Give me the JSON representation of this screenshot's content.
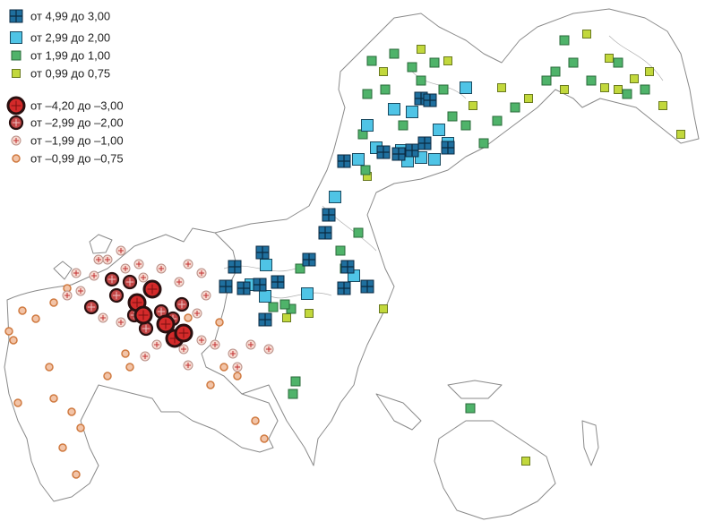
{
  "legend": {
    "items": [
      {
        "label": "от 4,99 до 3,00"
      },
      {
        "label": "от 2,99 до 2,00"
      },
      {
        "label": "от 1,99 до 1,00"
      },
      {
        "label": "от 0,99 до 0,75"
      },
      {
        "label": "от –4,20 до –3,00"
      },
      {
        "label": "от –2,99 до –2,00"
      },
      {
        "label": "от –1,99 до –1,00"
      },
      {
        "label": "от –0,99 до –0,75"
      }
    ]
  }
}
